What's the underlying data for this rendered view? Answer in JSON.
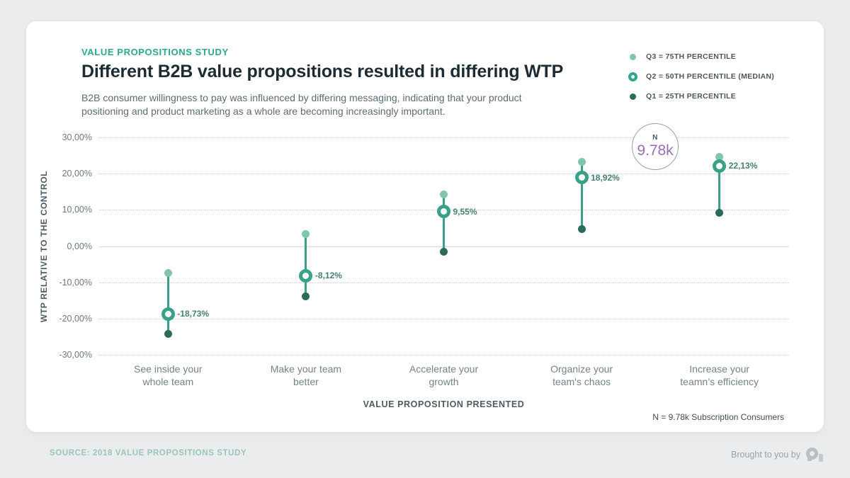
{
  "page": {
    "eyebrow": "VALUE PROPOSITIONS STUDY",
    "title": "Different B2B value propositions resulted in differing WTP",
    "subtitle": "B2B consumer willingness to pay was influenced by differing messaging, indicating that your product positioning and product marketing as a whole are becoming increasingly important.",
    "sample_note": "N = 9.78k Subscription Consumers",
    "footer_source": "SOURCE: 2018 VALUE PROPOSITIONS STUDY",
    "footer_attribution": "Brought to you by"
  },
  "legend": {
    "items": [
      {
        "marker": "q3-dot-icon",
        "label": "Q3 = 75TH PERCENTILE"
      },
      {
        "marker": "q2-ring-icon",
        "label": "Q2 = 50TH PERCENTILE (MEDIAN)"
      },
      {
        "marker": "q1-dot-icon",
        "label": "Q1 = 25TH PERCENTILE"
      }
    ]
  },
  "annotation": {
    "label": "N",
    "value": "9.78k"
  },
  "theme": {
    "accent_teal": "#2ea78e",
    "q3_color": "#7fc7ac",
    "q2_color": "#3aa189",
    "q1_color": "#2a6b5c",
    "purple": "#9b6fae",
    "background": "#ebeced"
  },
  "chart_data": {
    "type": "range-dot",
    "title": "Different B2B value propositions resulted in differing WTP",
    "xlabel": "VALUE PROPOSITION PRESENTED",
    "ylabel": "WTP RELATIVE TO THE CONTROL",
    "ylim": [
      -30,
      30
    ],
    "grid": "dotted-horizontal",
    "legend_position": "top-right",
    "yticks": [
      {
        "value": 30,
        "label": "30,00%"
      },
      {
        "value": 20,
        "label": "20,00%"
      },
      {
        "value": 10,
        "label": "10,00%"
      },
      {
        "value": 0,
        "label": "0,00%"
      },
      {
        "value": -10,
        "label": "-10,00%"
      },
      {
        "value": -20,
        "label": "-20,00%"
      },
      {
        "value": -30,
        "label": "-30,00%"
      }
    ],
    "categories": [
      "See inside your\nwhole team",
      "Make your team\nbetter",
      "Accelerate your\ngrowth",
      "Organize your\nteam's chaos",
      "Increase your\nteamn’s efficiency"
    ],
    "series": [
      {
        "category": "See inside your whole team",
        "q3": -7.5,
        "q2": -18.73,
        "q1": -24.3,
        "median_label": "-18,73%"
      },
      {
        "category": "Make your team better",
        "q3": 3.4,
        "q2": -8.12,
        "q1": -13.8,
        "median_label": "-8,12%"
      },
      {
        "category": "Accelerate your growth",
        "q3": 14.2,
        "q2": 9.55,
        "q1": -1.6,
        "median_label": "9,55%"
      },
      {
        "category": "Organize your team's chaos",
        "q3": 23.3,
        "q2": 18.92,
        "q1": 4.7,
        "median_label": "18,92%"
      },
      {
        "category": "Increase your teamn's efficiency",
        "q3": 24.7,
        "q2": 22.13,
        "q1": 9.1,
        "median_label": "22,13%"
      }
    ],
    "sample_size": "N = 9.78k Subscription Consumers"
  }
}
